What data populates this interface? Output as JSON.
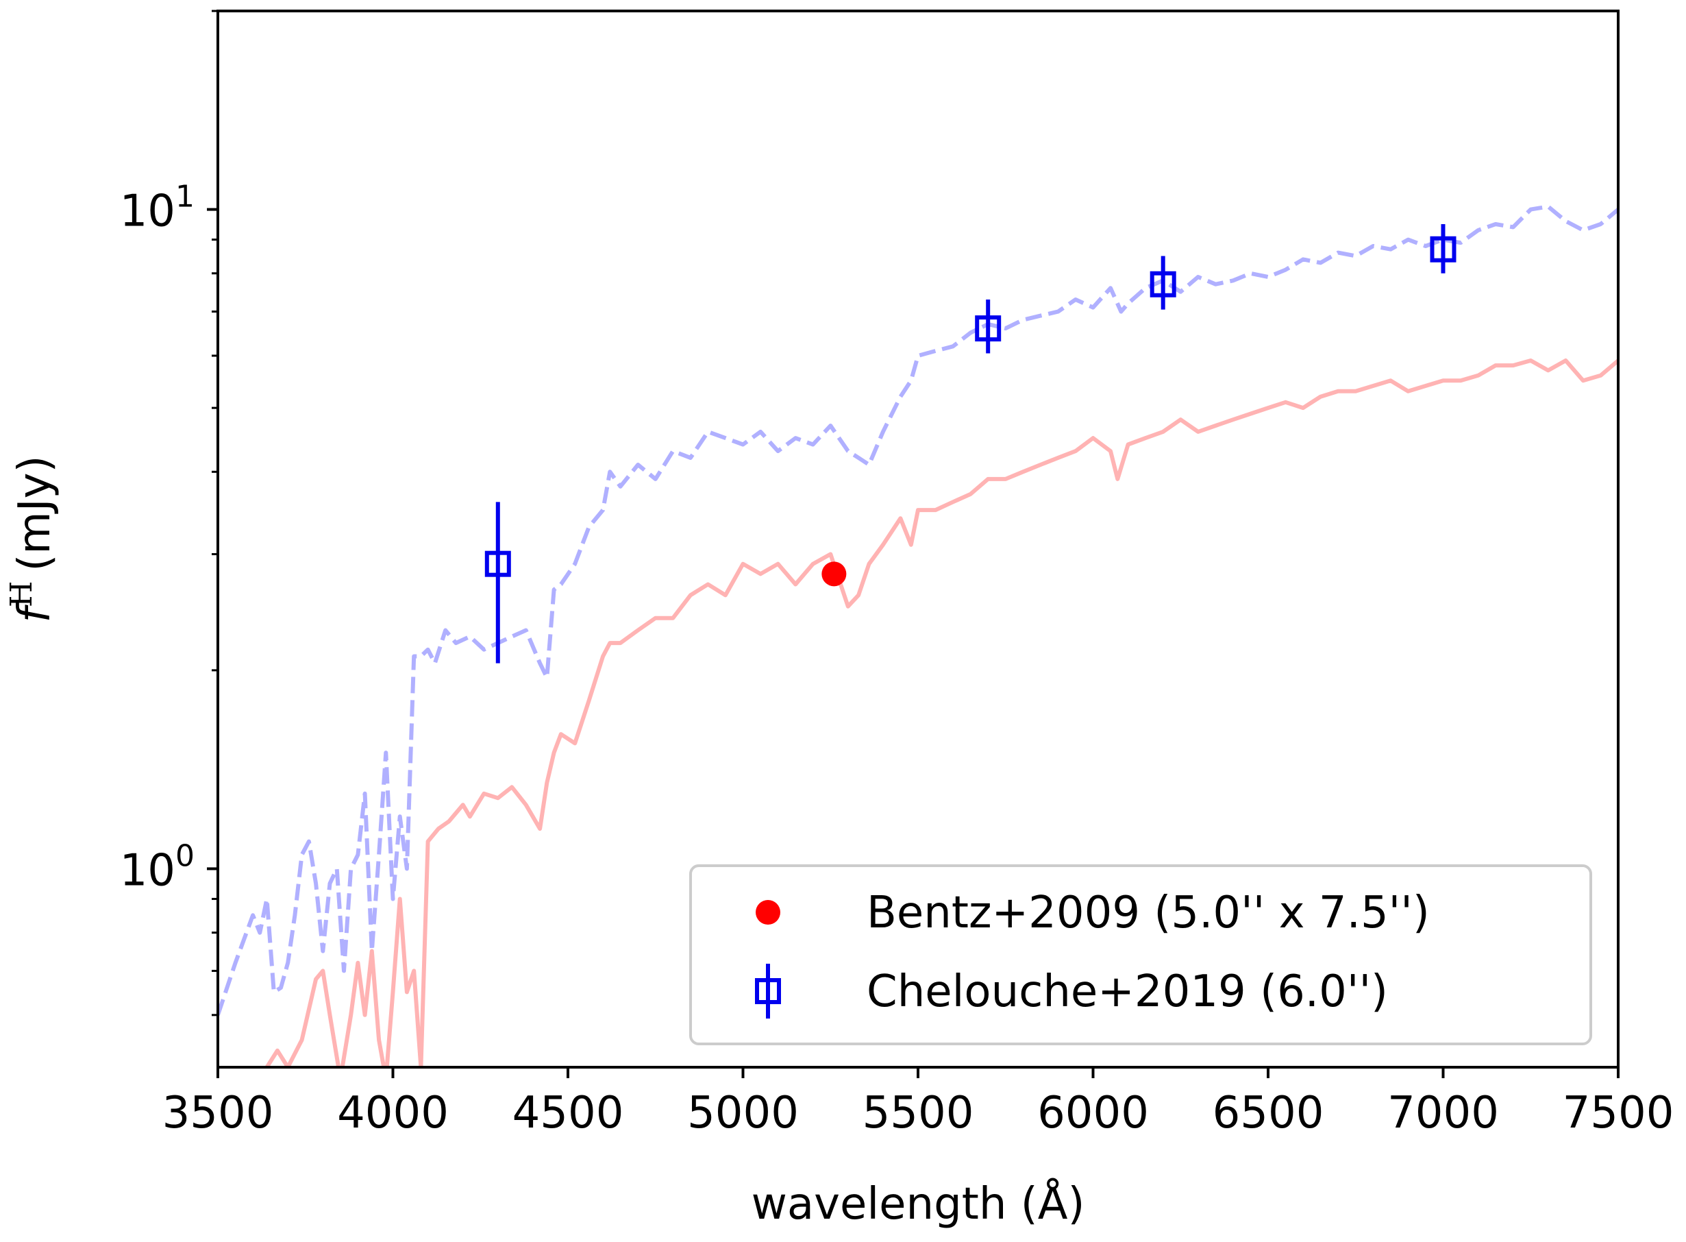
{
  "chart_data": {
    "type": "line",
    "xlabel": "wavelength (Å)",
    "ylabel": "f^H (mJy)",
    "ylabel_base": "f",
    "ylabel_sup": "H",
    "ylabel_unit": "(mJy)",
    "xlim": [
      3500,
      7500
    ],
    "ylim": [
      0.5,
      20
    ],
    "yscale": "log",
    "grid": false,
    "x_ticks": [
      3500,
      4000,
      4500,
      5000,
      5500,
      6000,
      6500,
      7000,
      7500
    ],
    "y_ticks": [
      {
        "value": 1,
        "base": "10",
        "exp": "0"
      },
      {
        "value": 10,
        "base": "10",
        "exp": "1"
      }
    ],
    "y_minor_ticks": [
      0.6,
      0.7,
      0.8,
      0.9,
      2,
      3,
      4,
      5,
      6,
      7,
      8,
      9,
      20
    ],
    "legend_position": "lower-right",
    "colors": {
      "bentz": "#ff0000",
      "chelouche": "#0000ee",
      "red_spectrum": "#ffb3b3",
      "blue_spectrum": "#b0b0ff"
    },
    "series": [
      {
        "name": "Bentz+2009 (5.0'' x 7.5'')",
        "kind": "point",
        "marker": "filled-circle",
        "color": "#ff0000",
        "points": [
          {
            "x": 5260,
            "y": 2.8
          }
        ]
      },
      {
        "name": "Chelouche+2019 (6.0'')",
        "kind": "errorbar",
        "marker": "open-square",
        "color": "#0000ee",
        "points": [
          {
            "x": 4300,
            "y": 2.9,
            "ylow": 2.05,
            "yhigh": 3.6
          },
          {
            "x": 5700,
            "y": 6.6,
            "ylow": 6.05,
            "yhigh": 7.3
          },
          {
            "x": 6200,
            "y": 7.7,
            "ylow": 7.05,
            "yhigh": 8.5
          },
          {
            "x": 7000,
            "y": 8.7,
            "ylow": 8.0,
            "yhigh": 9.5
          }
        ]
      },
      {
        "kind": "line",
        "style": "dashed",
        "color": "#b0b0ff",
        "x": [
          3500,
          3550,
          3600,
          3620,
          3640,
          3660,
          3680,
          3700,
          3720,
          3740,
          3760,
          3780,
          3800,
          3820,
          3840,
          3860,
          3880,
          3900,
          3920,
          3940,
          3960,
          3980,
          4000,
          4020,
          4040,
          4060,
          4080,
          4100,
          4120,
          4150,
          4180,
          4220,
          4260,
          4300,
          4340,
          4380,
          4420,
          4440,
          4460,
          4480,
          4520,
          4560,
          4600,
          4620,
          4650,
          4700,
          4750,
          4800,
          4850,
          4900,
          4950,
          5000,
          5050,
          5100,
          5150,
          5200,
          5250,
          5300,
          5330,
          5360,
          5400,
          5450,
          5480,
          5500,
          5550,
          5600,
          5650,
          5700,
          5750,
          5800,
          5850,
          5900,
          5950,
          6000,
          6050,
          6080,
          6100,
          6150,
          6200,
          6250,
          6300,
          6350,
          6400,
          6450,
          6500,
          6550,
          6600,
          6650,
          6700,
          6750,
          6800,
          6850,
          6900,
          6950,
          7000,
          7050,
          7100,
          7150,
          7200,
          7250,
          7300,
          7350,
          7400,
          7450,
          7500
        ],
        "y": [
          0.6,
          0.72,
          0.85,
          0.8,
          0.9,
          0.65,
          0.66,
          0.72,
          0.85,
          1.05,
          1.1,
          0.95,
          0.75,
          0.95,
          1.0,
          0.7,
          1.0,
          1.05,
          1.3,
          0.75,
          1.05,
          1.5,
          0.9,
          1.2,
          1.0,
          2.1,
          2.1,
          2.15,
          2.05,
          2.3,
          2.2,
          2.25,
          2.15,
          2.2,
          2.25,
          2.3,
          2.05,
          1.95,
          2.65,
          2.7,
          2.9,
          3.3,
          3.5,
          4.0,
          3.8,
          4.1,
          3.9,
          4.3,
          4.2,
          4.6,
          4.5,
          4.4,
          4.6,
          4.3,
          4.5,
          4.4,
          4.7,
          4.3,
          4.2,
          4.1,
          4.6,
          5.2,
          5.5,
          6.0,
          6.1,
          6.2,
          6.5,
          6.7,
          6.6,
          6.8,
          6.9,
          7.0,
          7.3,
          7.1,
          7.6,
          7.0,
          7.2,
          7.6,
          7.8,
          7.5,
          7.9,
          7.7,
          7.8,
          8.0,
          7.9,
          8.1,
          8.4,
          8.3,
          8.6,
          8.5,
          8.8,
          8.7,
          9.0,
          8.8,
          9.0,
          8.9,
          9.3,
          9.5,
          9.4,
          10.0,
          10.1,
          9.6,
          9.3,
          9.5,
          10.0
        ]
      },
      {
        "kind": "line",
        "style": "solid",
        "color": "#ffb3b3",
        "x": [
          3600,
          3640,
          3670,
          3700,
          3740,
          3780,
          3800,
          3820,
          3850,
          3880,
          3900,
          3920,
          3940,
          3960,
          3980,
          4000,
          4020,
          4040,
          4060,
          4080,
          4100,
          4130,
          4160,
          4200,
          4220,
          4260,
          4300,
          4340,
          4380,
          4420,
          4440,
          4460,
          4480,
          4520,
          4560,
          4600,
          4620,
          4650,
          4700,
          4750,
          4800,
          4850,
          4900,
          4950,
          5000,
          5050,
          5100,
          5150,
          5200,
          5250,
          5300,
          5330,
          5360,
          5400,
          5450,
          5480,
          5500,
          5550,
          5600,
          5650,
          5700,
          5750,
          5800,
          5850,
          5900,
          5950,
          6000,
          6050,
          6070,
          6100,
          6150,
          6200,
          6250,
          6300,
          6350,
          6400,
          6450,
          6500,
          6550,
          6600,
          6650,
          6700,
          6750,
          6800,
          6850,
          6900,
          6950,
          7000,
          7050,
          7100,
          7150,
          7200,
          7250,
          7300,
          7350,
          7400,
          7450,
          7500
        ],
        "y": [
          0.45,
          0.5,
          0.53,
          0.5,
          0.55,
          0.68,
          0.7,
          0.6,
          0.48,
          0.6,
          0.72,
          0.6,
          0.75,
          0.55,
          0.48,
          0.65,
          0.9,
          0.65,
          0.7,
          0.5,
          1.1,
          1.15,
          1.18,
          1.25,
          1.2,
          1.3,
          1.28,
          1.33,
          1.25,
          1.15,
          1.35,
          1.5,
          1.6,
          1.55,
          1.8,
          2.1,
          2.2,
          2.2,
          2.3,
          2.4,
          2.4,
          2.6,
          2.7,
          2.6,
          2.9,
          2.8,
          2.9,
          2.7,
          2.9,
          3.0,
          2.5,
          2.6,
          2.9,
          3.1,
          3.4,
          3.1,
          3.5,
          3.5,
          3.6,
          3.7,
          3.9,
          3.9,
          4.0,
          4.1,
          4.2,
          4.3,
          4.5,
          4.3,
          3.9,
          4.4,
          4.5,
          4.6,
          4.8,
          4.6,
          4.7,
          4.8,
          4.9,
          5.0,
          5.1,
          5.0,
          5.2,
          5.3,
          5.3,
          5.4,
          5.5,
          5.3,
          5.4,
          5.5,
          5.5,
          5.6,
          5.8,
          5.8,
          5.9,
          5.7,
          5.9,
          5.5,
          5.6,
          5.9
        ]
      }
    ]
  }
}
